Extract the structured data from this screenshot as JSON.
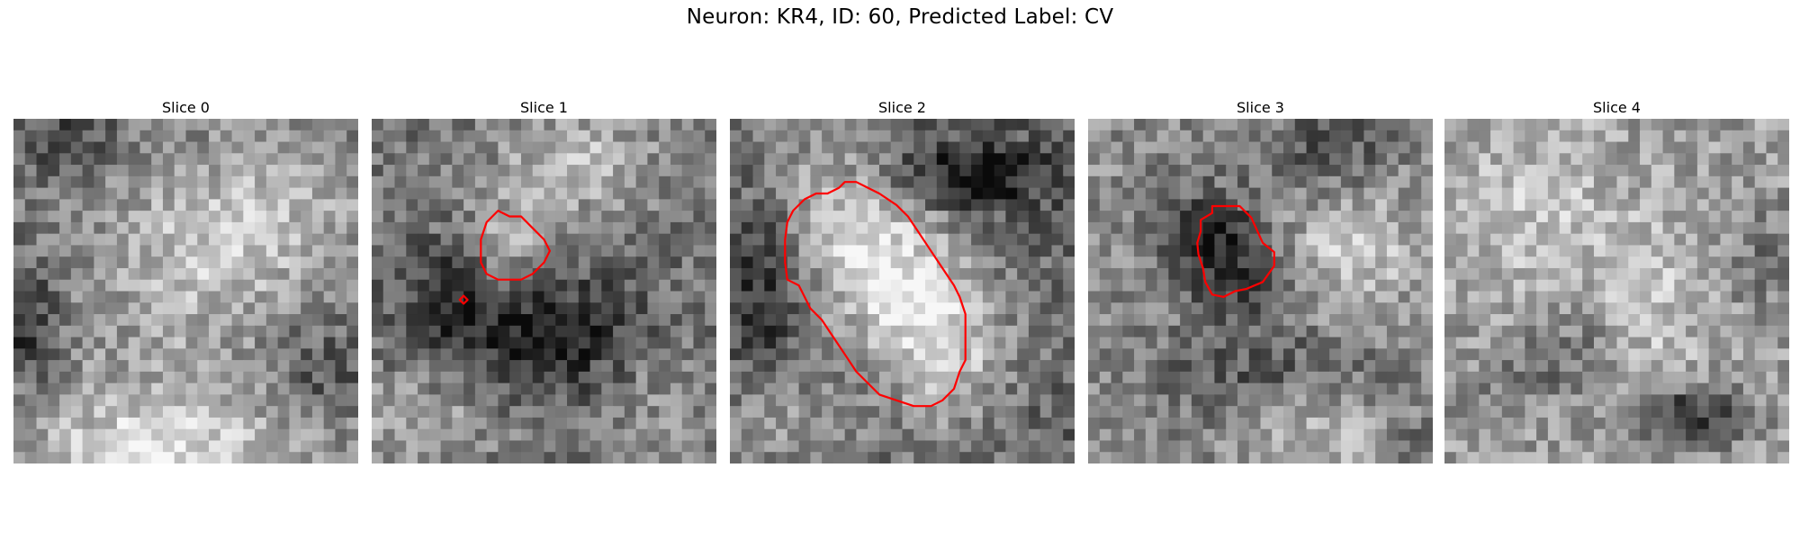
{
  "figure": {
    "title": "Neuron: KR4, ID: 60, Predicted Label: CV"
  },
  "contour_color": "#ff0000",
  "panels": [
    {
      "title": "Slice 0",
      "contours": []
    },
    {
      "title": "Slice 1",
      "contours": [
        "main",
        "dot"
      ]
    },
    {
      "title": "Slice 2",
      "contours": [
        "main"
      ]
    },
    {
      "title": "Slice 3",
      "contours": [
        "main"
      ]
    },
    {
      "title": "Slice 4",
      "contours": []
    }
  ]
}
